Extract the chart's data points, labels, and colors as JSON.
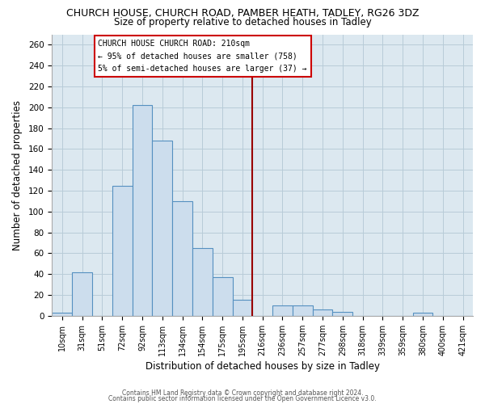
{
  "title": "CHURCH HOUSE, CHURCH ROAD, PAMBER HEATH, TADLEY, RG26 3DZ",
  "subtitle": "Size of property relative to detached houses in Tadley",
  "xlabel": "Distribution of detached houses by size in Tadley",
  "ylabel": "Number of detached properties",
  "bar_labels": [
    "10sqm",
    "31sqm",
    "51sqm",
    "72sqm",
    "92sqm",
    "113sqm",
    "134sqm",
    "154sqm",
    "175sqm",
    "195sqm",
    "216sqm",
    "236sqm",
    "257sqm",
    "277sqm",
    "298sqm",
    "318sqm",
    "339sqm",
    "359sqm",
    "380sqm",
    "400sqm",
    "421sqm"
  ],
  "bar_heights": [
    3,
    42,
    0,
    125,
    202,
    168,
    110,
    65,
    37,
    15,
    0,
    10,
    10,
    6,
    4,
    0,
    0,
    0,
    3,
    0,
    0
  ],
  "bar_color": "#ccdded",
  "bar_edge_color": "#5590c0",
  "vline_x": 9.5,
  "vline_color": "#990000",
  "annotation_title": "CHURCH HOUSE CHURCH ROAD: 210sqm",
  "annotation_line1": "← 95% of detached houses are smaller (758)",
  "annotation_line2": "5% of semi-detached houses are larger (37) →",
  "ylim": [
    0,
    270
  ],
  "yticks": [
    0,
    20,
    40,
    60,
    80,
    100,
    120,
    140,
    160,
    180,
    200,
    220,
    240,
    260
  ],
  "footer1": "Contains HM Land Registry data © Crown copyright and database right 2024.",
  "footer2": "Contains public sector information licensed under the Open Government Licence v3.0.",
  "background_color": "#ffffff",
  "plot_bg_color": "#dce8f0",
  "grid_color": "#b8ccd8"
}
